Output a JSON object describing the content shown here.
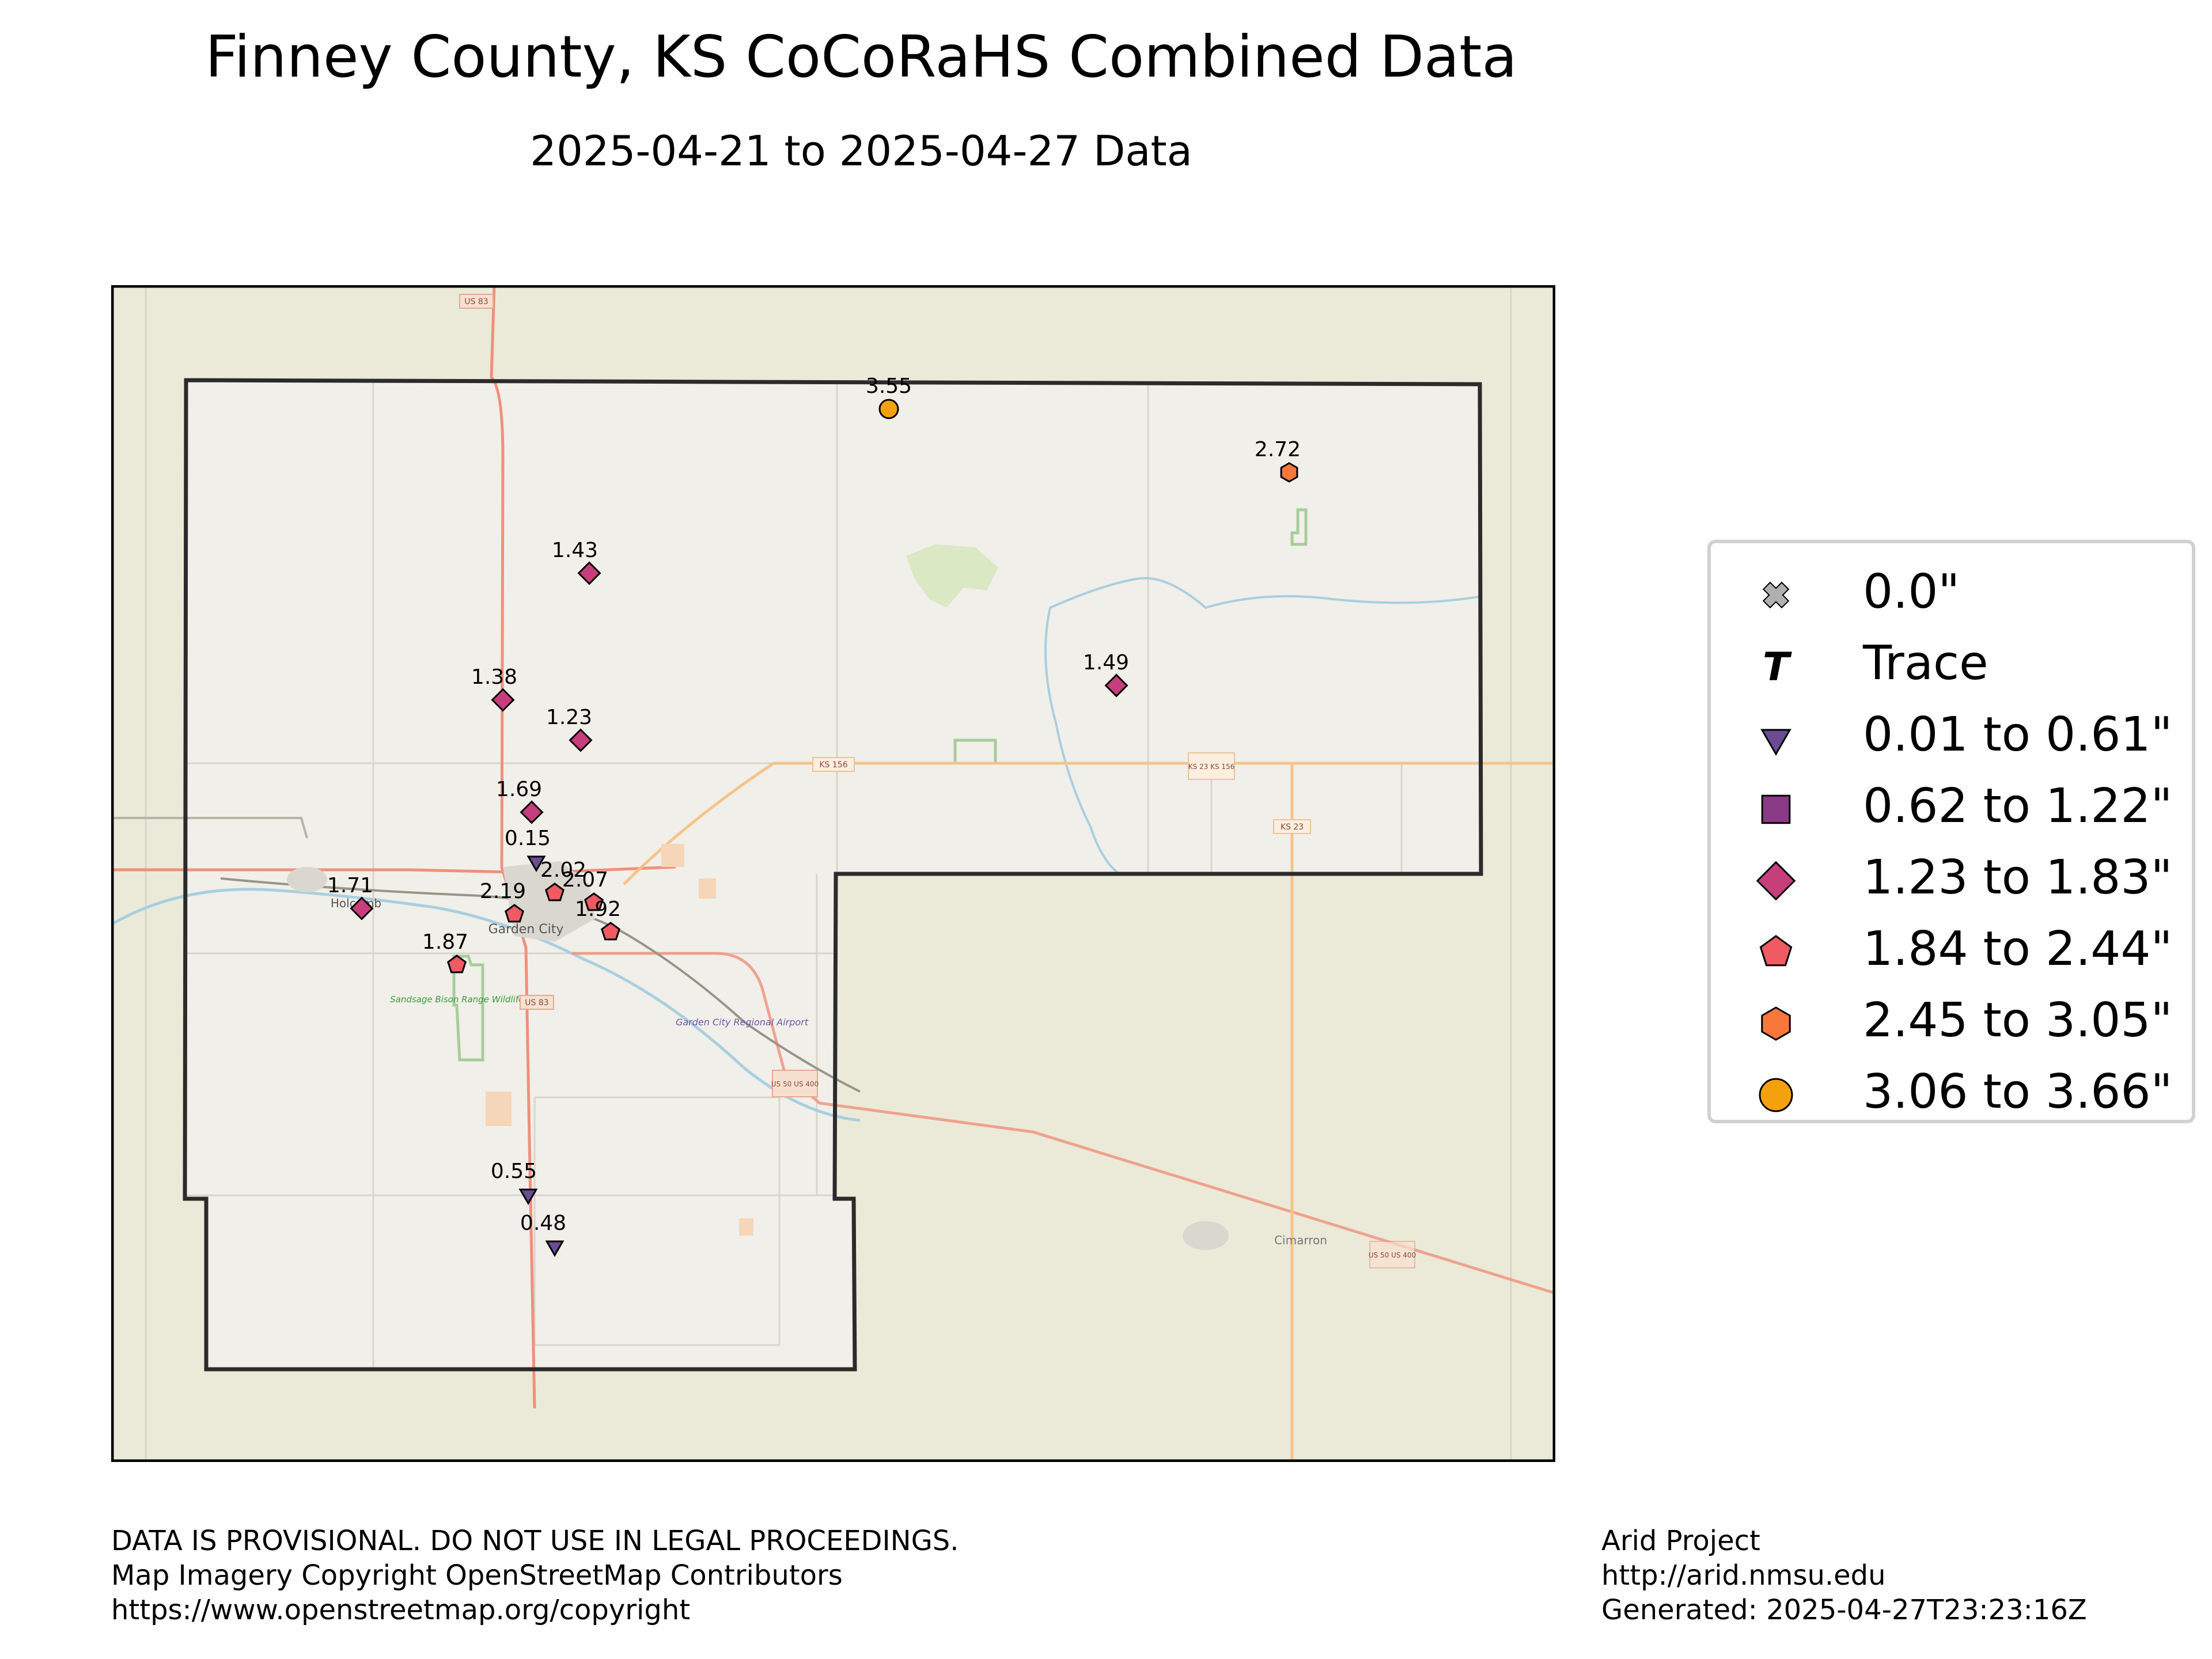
{
  "title": "Finney County, KS CoCoRaHS Combined Data",
  "subtitle": "2025-04-21 to 2025-04-27 Data",
  "map_labels": {
    "town_garden_city": "Garden City",
    "town_holcomb": "Holcomb",
    "town_cimarron": "Cimarron",
    "airport": "Garden City Regional Airport",
    "wildlife_area": "Sandsage Bison Range Wildlife Area",
    "shields": {
      "us83_top": "US 83",
      "us83_mid": "US 83",
      "ks156": "KS 156",
      "ks23_ks156": "KS 23 KS 156",
      "ks23": "KS 23",
      "us50_400_mid": "US 50 US 400",
      "us50_400_east": "US 50 US 400"
    }
  },
  "colors": {
    "trace_zero": "#b0b0b0",
    "bin1": "#6a4c93",
    "bin2": "#8b3a87",
    "bin3": "#c73e7d",
    "bin4": "#f05a63",
    "bin5": "#f9773a",
    "bin6": "#f5a10d",
    "county_border": "#2b2b2b",
    "map_bg": "#ebe9dc"
  },
  "legend": [
    {
      "label": "0.0\"",
      "marker": "x-icon",
      "color": "#b0b0b0"
    },
    {
      "label": "Trace",
      "marker": "trace-t-icon",
      "color": "#000000"
    },
    {
      "label": "0.01 to 0.61\"",
      "marker": "triangle-down-icon",
      "color": "#6a4c93"
    },
    {
      "label": "0.62 to 1.22\"",
      "marker": "square-icon",
      "color": "#8b3a87"
    },
    {
      "label": "1.23 to 1.83\"",
      "marker": "diamond-icon",
      "color": "#c73e7d"
    },
    {
      "label": "1.84 to 2.44\"",
      "marker": "pentagon-icon",
      "color": "#f05a63"
    },
    {
      "label": "2.45 to 3.05\"",
      "marker": "hexagon-icon",
      "color": "#f9773a"
    },
    {
      "label": "3.06 to 3.66\"",
      "marker": "circle-icon",
      "color": "#f5a10d"
    }
  ],
  "stations": [
    {
      "value": "3.55",
      "marker": "circle"
    },
    {
      "value": "2.72",
      "marker": "hexagon"
    },
    {
      "value": "1.43",
      "marker": "diamond"
    },
    {
      "value": "1.38",
      "marker": "diamond"
    },
    {
      "value": "1.23",
      "marker": "diamond"
    },
    {
      "value": "1.49",
      "marker": "diamond"
    },
    {
      "value": "1.69",
      "marker": "diamond"
    },
    {
      "value": "0.15",
      "marker": "triangle"
    },
    {
      "value": "2.02",
      "marker": "pentagon"
    },
    {
      "value": "2.07",
      "marker": "pentagon"
    },
    {
      "value": "1.92",
      "marker": "pentagon"
    },
    {
      "value": "2.19",
      "marker": "pentagon"
    },
    {
      "value": "1.71",
      "marker": "diamond"
    },
    {
      "value": "1.87",
      "marker": "pentagon"
    },
    {
      "value": "0.55",
      "marker": "triangle"
    },
    {
      "value": "0.48",
      "marker": "triangle"
    }
  ],
  "footer": {
    "left": [
      "DATA IS PROVISIONAL. DO NOT USE IN LEGAL PROCEEDINGS.",
      "Map Imagery Copyright OpenStreetMap Contributors",
      "https://www.openstreetmap.org/copyright"
    ],
    "right": [
      "Arid Project",
      "http://arid.nmsu.edu",
      "Generated: 2025-04-27T23:23:16Z"
    ]
  }
}
